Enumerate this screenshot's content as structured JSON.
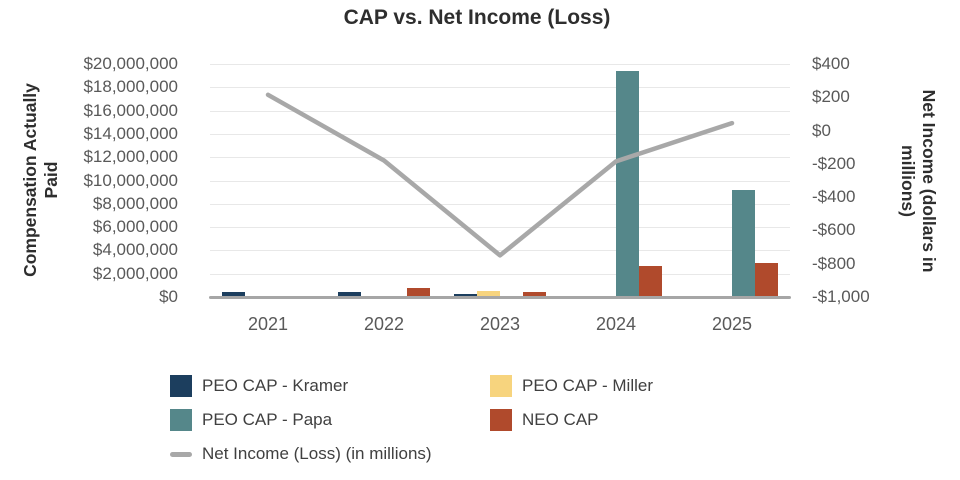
{
  "title": "CAP vs. Net Income (Loss)",
  "left_axis": {
    "title_lines": [
      "Compensation Actually",
      "Paid"
    ],
    "ticks": [
      "$20,000,000",
      "$18,000,000",
      "$16,000,000",
      "$14,000,000",
      "$12,000,000",
      "$10,000,000",
      "$8,000,000",
      "$6,000,000",
      "$4,000,000",
      "$2,000,000",
      "$0"
    ]
  },
  "right_axis": {
    "title_lines": [
      "Net Income (dollars in",
      "millions)"
    ],
    "ticks": [
      "$400",
      "$200",
      "$0",
      "-$200",
      "-$400",
      "-$600",
      "-$800",
      "-$1,000"
    ]
  },
  "colors": {
    "kramer_navy": "#1c3e5e",
    "miller_yellow": "#f7d47e",
    "papa_teal": "#55878a",
    "neo_red": "#b04a2c",
    "line_gray": "#a8a8a8",
    "gridline": "#e8e8e8",
    "axis_baseline": "#a6a6a6"
  },
  "chart_data": {
    "type": "combo-bar-line",
    "categories": [
      "2021",
      "2022",
      "2023",
      "2024",
      "2025"
    ],
    "bar_series": [
      {
        "name": "PEO CAP - Kramer",
        "color": "#1c3e5e",
        "values": [
          450000,
          450000,
          250000,
          0,
          0
        ]
      },
      {
        "name": "PEO CAP - Miller",
        "color": "#f7d47e",
        "values": [
          0,
          0,
          550000,
          0,
          0
        ]
      },
      {
        "name": "PEO CAP - Papa",
        "color": "#55878a",
        "values": [
          0,
          0,
          0,
          19400000,
          9200000
        ]
      },
      {
        "name": "NEO CAP",
        "color": "#b04a2c",
        "values": [
          0,
          800000,
          400000,
          2700000,
          2900000
        ]
      }
    ],
    "line_series": {
      "name": "Net Income (Loss) (in millions)",
      "color": "#a8a8a8",
      "values": [
        215,
        -180,
        -750,
        -185,
        45
      ]
    },
    "title": "CAP vs. Net Income (Loss)",
    "left_ylabel": "Compensation Actually Paid",
    "right_ylabel": "Net Income (dollars in millions)",
    "left_ylim": [
      0,
      20000000
    ],
    "right_ylim": [
      -1000,
      400
    ],
    "grid": true,
    "legend_position": "bottom"
  },
  "legend": {
    "items": [
      {
        "label": "PEO CAP - Kramer",
        "swatch": "rect",
        "color": "#1c3e5e",
        "col": 0,
        "row": 0
      },
      {
        "label": "PEO CAP - Papa",
        "swatch": "rect",
        "color": "#55878a",
        "col": 0,
        "row": 1
      },
      {
        "label": "Net Income (Loss) (in millions)",
        "swatch": "line",
        "color": "#a8a8a8",
        "col": 0,
        "row": 2
      },
      {
        "label": "PEO CAP - Miller",
        "swatch": "rect",
        "color": "#f7d47e",
        "col": 1,
        "row": 0
      },
      {
        "label": "NEO CAP",
        "swatch": "rect",
        "color": "#b04a2c",
        "col": 1,
        "row": 1
      }
    ]
  }
}
